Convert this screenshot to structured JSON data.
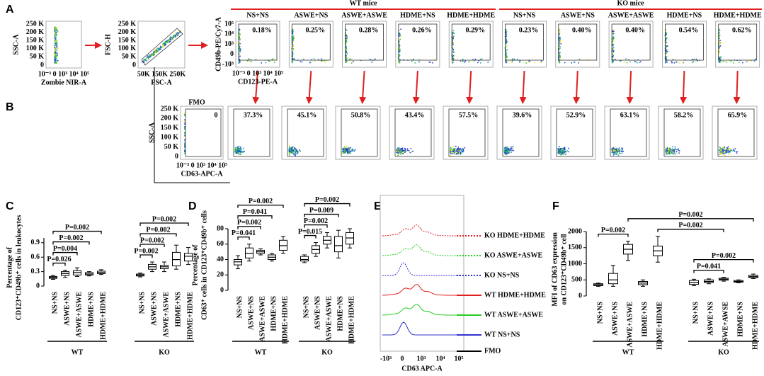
{
  "panel_labels": [
    "A",
    "B",
    "C",
    "D",
    "E",
    "F"
  ],
  "flow": {
    "gating": [
      {
        "y_label": "SSC-A",
        "y_ticks": [
          "250 K",
          "200 K",
          "150 K",
          "100 K",
          "50 K",
          "0"
        ],
        "x_ticks": "10⁻³ 0 10³ 10⁴ 10⁵",
        "x_label": "Zombie NIR-A"
      },
      {
        "y_label": "FSC-H",
        "y_ticks": [
          "250 K",
          "200 K",
          "150 K",
          "100 K",
          "50 K",
          "0"
        ],
        "x_ticks": "50K 150K 250K",
        "x_label": "FSC-A"
      }
    ],
    "groups": [
      "WT mice",
      "KO mice"
    ],
    "conditions": [
      "NS+NS",
      "ASWE+NS",
      "ASWE+ASWE",
      "HDME+NS",
      "HDME+HDME",
      "NS+NS",
      "ASWE+NS",
      "ASWE+ASWE",
      "HDME+NS",
      "HDME+HDME"
    ],
    "row_a": {
      "y_label": "CD49b-PE/Cy7-A",
      "y_ticks": [
        "10⁵",
        "10⁴",
        "10³",
        "0",
        "-10³"
      ],
      "x_ticks": "10⁻³ 0 10³ 10⁴ 10⁵",
      "x_label": "CD123-PE-A",
      "percentages": [
        "0.18%",
        "0.25%",
        "0.28%",
        "0.26%",
        "0.29%",
        "0.23%",
        "0.40%",
        "0.40%",
        "0.54%",
        "0.62%"
      ]
    },
    "row_b": {
      "fmo_title": "FMO",
      "fmo_value": "0",
      "y_label": "SSC-A",
      "y_ticks": [
        "250 K",
        "200 K",
        "150 K",
        "100 K",
        "50 K",
        "0"
      ],
      "x_ticks": "10⁻³ 0 10³ 10⁴ 10⁵",
      "x_label": "CD63-APC-A",
      "percentages": [
        "37.3%",
        "45.1%",
        "50.8%",
        "43.4%",
        "57.5%",
        "39.6%",
        "52.9%",
        "63.1%",
        "58.2%",
        "65.9%"
      ]
    }
  },
  "histogram": {
    "traces": [
      {
        "label": "KO HDME+HDME",
        "color": "#e02020",
        "dotted": true
      },
      {
        "label": "KO ASWE+ASWE",
        "color": "#22cc22",
        "dotted": true
      },
      {
        "label": "KO NS+NS",
        "color": "#3030d0",
        "dotted": true
      },
      {
        "label": "WT HDME+HDME",
        "color": "#e02020",
        "dotted": false
      },
      {
        "label": "WT ASWE+ASWE",
        "color": "#22cc22",
        "dotted": false
      },
      {
        "label": "WT NS+NS",
        "color": "#3030d0",
        "dotted": false
      },
      {
        "label": "FMO",
        "color": "#000000",
        "dotted": false
      }
    ],
    "x_ticks": [
      "-10³",
      "0",
      "10³",
      "10⁴",
      "10⁵"
    ],
    "x_label": "CD63 APC-A"
  },
  "chart_data": [
    {
      "type": "box",
      "y_label": [
        "Percentage of",
        "CD123⁺CD49b⁺ cells in leukocytes"
      ],
      "categories": [
        "NS+NS",
        "ASWE+NS",
        "ASWE+ASWE",
        "HDME+NS",
        "HDME+HDME",
        "NS+NS",
        "ASWE+NS",
        "ASWE+ASWE",
        "HDME+NS",
        "HDME+HDME"
      ],
      "groups": [
        "WT",
        "KO"
      ],
      "ylim": [
        0,
        1
      ],
      "yticks": [
        0,
        0.3,
        0.6,
        0.9
      ],
      "boxes": [
        {
          "min": 0.14,
          "q1": 0.16,
          "median": 0.18,
          "q3": 0.2,
          "max": 0.22
        },
        {
          "min": 0.18,
          "q1": 0.22,
          "median": 0.26,
          "q3": 0.3,
          "max": 0.33
        },
        {
          "min": 0.2,
          "q1": 0.23,
          "median": 0.28,
          "q3": 0.32,
          "max": 0.38
        },
        {
          "min": 0.21,
          "q1": 0.23,
          "median": 0.25,
          "q3": 0.28,
          "max": 0.3
        },
        {
          "min": 0.24,
          "q1": 0.26,
          "median": 0.28,
          "q3": 0.31,
          "max": 0.34
        },
        {
          "min": 0.19,
          "q1": 0.21,
          "median": 0.23,
          "q3": 0.25,
          "max": 0.27
        },
        {
          "min": 0.3,
          "q1": 0.35,
          "median": 0.4,
          "q3": 0.45,
          "max": 0.5
        },
        {
          "min": 0.3,
          "q1": 0.36,
          "median": 0.4,
          "q3": 0.43,
          "max": 0.5
        },
        {
          "min": 0.35,
          "q1": 0.42,
          "median": 0.55,
          "q3": 0.7,
          "max": 0.85
        },
        {
          "min": 0.45,
          "q1": 0.52,
          "median": 0.62,
          "q3": 0.68,
          "max": 0.8
        }
      ],
      "comparisons": [
        {
          "label": "P=0.026",
          "from": 0,
          "to": 1
        },
        {
          "label": "P=0.004",
          "from": 0,
          "to": 2
        },
        {
          "label": "P=0.002",
          "from": 0,
          "to": 3
        },
        {
          "label": "P=0.002",
          "from": 0,
          "to": 4
        },
        {
          "label": "P=0.002",
          "from": 5,
          "to": 6
        },
        {
          "label": "P=0.002",
          "from": 5,
          "to": 7
        },
        {
          "label": "P=0.002",
          "from": 5,
          "to": 8
        },
        {
          "label": "P=0.002",
          "from": 5,
          "to": 9
        }
      ]
    },
    {
      "type": "box",
      "y_label": [
        "Percentage of",
        "CD63⁺ cells in CD123⁺CD49b⁺ cells"
      ],
      "categories": [
        "NS+NS",
        "ASWE+NS",
        "ASWE+ASWE",
        "HDME+NS",
        "HDME+HDME",
        "NS+NS",
        "ASWE+NS",
        "ASWE+ASWE",
        "HDME+NS",
        "HDME+HDME"
      ],
      "groups": [
        "WT",
        "KO"
      ],
      "ylim": [
        0,
        80
      ],
      "yticks": [
        0,
        20,
        40,
        60,
        80
      ],
      "boxes": [
        {
          "min": 28,
          "q1": 33,
          "median": 37,
          "q3": 40,
          "max": 45
        },
        {
          "min": 38,
          "q1": 42,
          "median": 48,
          "q3": 55,
          "max": 60
        },
        {
          "min": 46,
          "q1": 48,
          "median": 50,
          "q3": 52,
          "max": 54
        },
        {
          "min": 38,
          "q1": 40,
          "median": 43,
          "q3": 46,
          "max": 48
        },
        {
          "min": 48,
          "q1": 52,
          "median": 58,
          "q3": 65,
          "max": 70
        },
        {
          "min": 36,
          "q1": 38,
          "median": 40,
          "q3": 44,
          "max": 46
        },
        {
          "min": 44,
          "q1": 48,
          "median": 53,
          "q3": 58,
          "max": 62
        },
        {
          "min": 55,
          "q1": 60,
          "median": 65,
          "q3": 70,
          "max": 75
        },
        {
          "min": 42,
          "q1": 50,
          "median": 58,
          "q3": 70,
          "max": 78
        },
        {
          "min": 55,
          "q1": 60,
          "median": 68,
          "q3": 75,
          "max": 80
        }
      ],
      "comparisons": [
        {
          "label": "P=0.041",
          "from": 0,
          "to": 1
        },
        {
          "label": "P=0.002",
          "from": 0,
          "to": 2
        },
        {
          "label": "P=0.041",
          "from": 0,
          "to": 3
        },
        {
          "label": "P=0.002",
          "from": 0,
          "to": 4
        },
        {
          "label": "P=0.015",
          "from": 5,
          "to": 6
        },
        {
          "label": "P=0.002",
          "from": 5,
          "to": 7
        },
        {
          "label": "P=0.009",
          "from": 5,
          "to": 8
        },
        {
          "label": "P=0.002",
          "from": 5,
          "to": 9
        }
      ]
    },
    {
      "type": "box",
      "y_label": [
        "MFI of CD63 expression",
        "on CD123⁺CD49b⁺ cell"
      ],
      "categories": [
        "NS+NS",
        "ASWE+NS",
        "ASWE+ASWE",
        "HDME+NS",
        "HDME+HDME",
        "NS+NS",
        "ASWE+NS",
        "ASWE+AWSE",
        "HDME+NS",
        "HDME+HDME"
      ],
      "groups": [
        "WT",
        "KO"
      ],
      "ylim": [
        0,
        2000
      ],
      "yticks": [
        0,
        500,
        1000,
        1500,
        2000
      ],
      "boxes": [
        {
          "min": 300,
          "q1": 320,
          "median": 350,
          "q3": 380,
          "max": 400
        },
        {
          "min": 300,
          "q1": 380,
          "median": 500,
          "q3": 700,
          "max": 950
        },
        {
          "min": 1100,
          "q1": 1300,
          "median": 1450,
          "q3": 1600,
          "max": 1700
        },
        {
          "min": 300,
          "q1": 350,
          "median": 400,
          "q3": 450,
          "max": 500
        },
        {
          "min": 1050,
          "q1": 1250,
          "median": 1400,
          "q3": 1550,
          "max": 1850
        },
        {
          "min": 320,
          "q1": 360,
          "median": 420,
          "q3": 480,
          "max": 520
        },
        {
          "min": 380,
          "q1": 420,
          "median": 450,
          "q3": 500,
          "max": 530
        },
        {
          "min": 460,
          "q1": 490,
          "median": 520,
          "q3": 550,
          "max": 580
        },
        {
          "min": 410,
          "q1": 430,
          "median": 450,
          "q3": 480,
          "max": 500
        },
        {
          "min": 540,
          "q1": 570,
          "median": 600,
          "q3": 640,
          "max": 680
        }
      ],
      "comparisons": [
        {
          "label": "P=0.002",
          "from": 0,
          "to": 2
        },
        {
          "label": "P=0.041",
          "from": 5,
          "to": 7
        },
        {
          "label": "P=0.002",
          "from": 5,
          "to": 9
        },
        {
          "label": "P=0.002",
          "from": 4,
          "to": 7
        },
        {
          "label": "P=0.002",
          "from": 2,
          "to": 9
        }
      ]
    }
  ]
}
